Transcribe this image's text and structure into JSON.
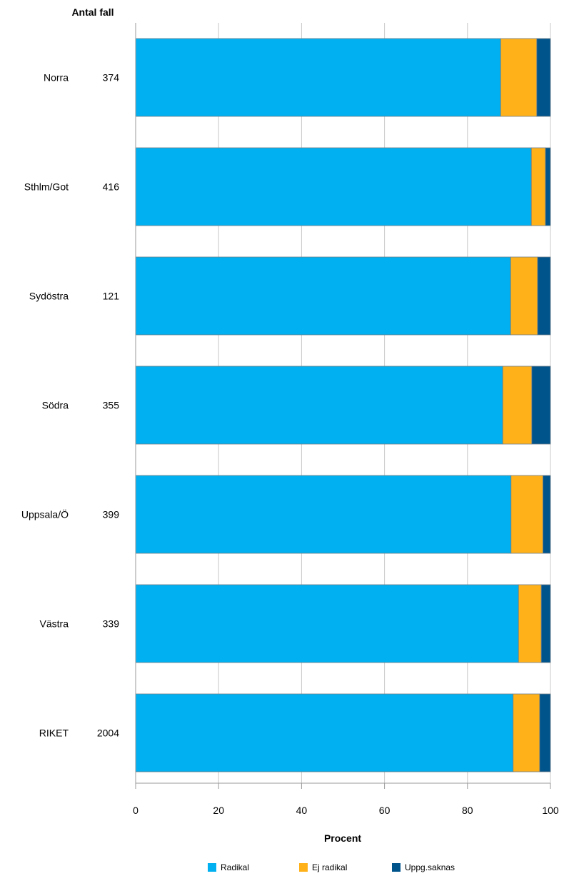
{
  "chart_data": {
    "type": "bar",
    "orientation": "horizontal",
    "stacked": true,
    "count_header": "Antal fall",
    "xlabel": "Procent",
    "xlim": [
      0,
      100
    ],
    "xticks": [
      0,
      20,
      40,
      60,
      80,
      100
    ],
    "grid": true,
    "legend_position": "bottom",
    "categories": [
      "Norra",
      "Sthlm/Got",
      "Sydöstra",
      "Södra",
      "Uppsala/Ö",
      "Västra",
      "RIKET"
    ],
    "counts": [
      "374",
      "416",
      "121",
      "355",
      "399",
      "339",
      "2004"
    ],
    "series": [
      {
        "name": "Radikal",
        "color": "#00b0f0",
        "values": [
          88,
          95.4,
          90.4,
          88.5,
          90.5,
          92.3,
          91.0
        ]
      },
      {
        "name": "Ej radikal",
        "color": "#ffb11a",
        "values": [
          8.7,
          3.4,
          6.5,
          7.0,
          7.7,
          5.5,
          6.4
        ]
      },
      {
        "name": "Uppg.saknas",
        "color": "#00548c",
        "values": [
          3.3,
          1.2,
          3.1,
          4.5,
          1.8,
          2.2,
          2.6
        ]
      }
    ]
  }
}
